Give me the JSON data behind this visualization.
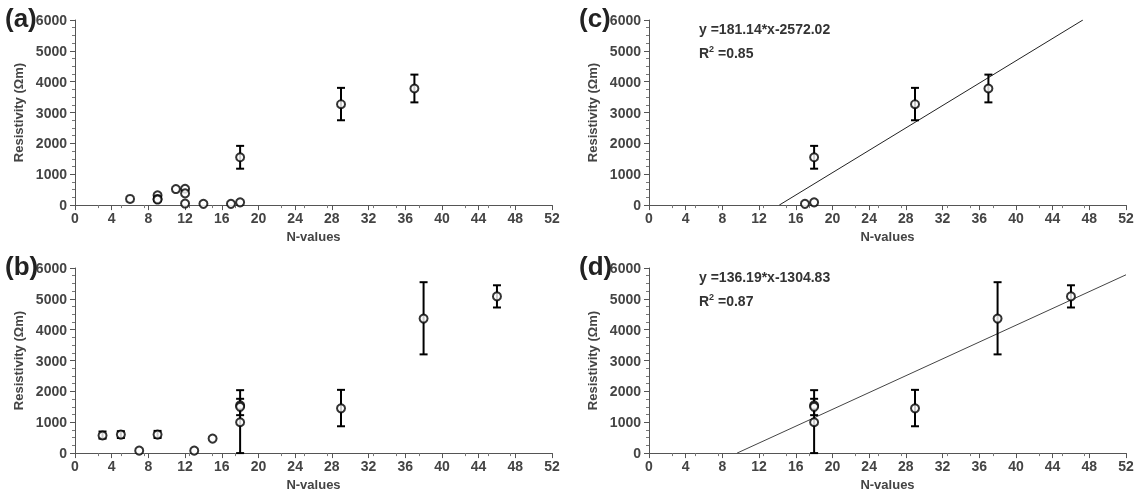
{
  "chart_data": [
    {
      "type": "scatter",
      "title": "(a)",
      "xlabel": "N-values",
      "ylabel": "Resistivity (Ωm)",
      "xlim": [
        0,
        52
      ],
      "ylim": [
        0,
        6000
      ],
      "xticks": [
        0,
        4,
        8,
        12,
        16,
        20,
        24,
        28,
        32,
        36,
        40,
        44,
        48,
        52
      ],
      "yticks": [
        0,
        1000,
        2000,
        3000,
        4000,
        5000,
        6000
      ],
      "grid": false,
      "series": [
        {
          "marker": "circle",
          "color": "#000000",
          "x": [
            6,
            9,
            9,
            9,
            11,
            12,
            12,
            12,
            14,
            17,
            18,
            18,
            29,
            37
          ],
          "values": [
            200,
            320,
            200,
            180,
            520,
            530,
            380,
            50,
            40,
            40,
            90,
            1550,
            3270,
            3780
          ],
          "errors": [
            null,
            null,
            null,
            null,
            null,
            null,
            null,
            null,
            null,
            null,
            null,
            [
              1180,
              1920
            ],
            [
              2750,
              3800
            ],
            [
              3330,
              4230
            ]
          ]
        }
      ]
    },
    {
      "type": "scatter",
      "title": "(c)",
      "xlabel": "N-values",
      "ylabel": "Resistivity (Ωm)",
      "xlim": [
        0,
        52
      ],
      "ylim": [
        0,
        6000
      ],
      "xticks": [
        0,
        4,
        8,
        12,
        16,
        20,
        24,
        28,
        32,
        36,
        40,
        44,
        48,
        52
      ],
      "yticks": [
        0,
        1000,
        2000,
        3000,
        4000,
        5000,
        6000
      ],
      "grid": false,
      "annotations": [
        "y =181.14*x-2572.02",
        "R$^{2}$ =0.85"
      ],
      "series": [
        {
          "marker": "circle",
          "color": "#000000",
          "x": [
            17,
            18,
            18,
            29,
            37
          ],
          "values": [
            40,
            90,
            1550,
            3270,
            3780
          ],
          "errors": [
            null,
            null,
            [
              1180,
              1920
            ],
            [
              2750,
              3800
            ],
            [
              3330,
              4230
            ]
          ]
        },
        {
          "type": "line",
          "marker": "none",
          "color": "#222222",
          "x": [
            14.2,
            47.3
          ],
          "values": [
            0,
            6000
          ]
        }
      ]
    },
    {
      "type": "scatter",
      "title": "(b)",
      "xlabel": "N-values",
      "ylabel": "Resistivity (Ωm)",
      "xlim": [
        0,
        52
      ],
      "ylim": [
        0,
        6000
      ],
      "xticks": [
        0,
        4,
        8,
        12,
        16,
        20,
        24,
        28,
        32,
        36,
        40,
        44,
        48,
        52
      ],
      "yticks": [
        0,
        1000,
        2000,
        3000,
        4000,
        5000,
        6000
      ],
      "grid": false,
      "series": [
        {
          "marker": "circle",
          "color": "#000000",
          "x": [
            3,
            5,
            7,
            9,
            13,
            15,
            18,
            18,
            18,
            29,
            38,
            46
          ],
          "values": [
            570,
            600,
            80,
            600,
            80,
            470,
            1550,
            1500,
            1000,
            1450,
            4360,
            5080
          ],
          "errors": [
            [
              470,
              700
            ],
            [
              490,
              710
            ],
            null,
            [
              490,
              720
            ],
            null,
            null,
            [
              1230,
              1760
            ],
            null,
            [
              0,
              2040
            ],
            [
              870,
              2050
            ],
            [
              3200,
              5540
            ],
            [
              4720,
              5440
            ]
          ]
        }
      ]
    },
    {
      "type": "scatter",
      "title": "(d)",
      "xlabel": "N-values",
      "ylabel": "Resistivity (Ωm)",
      "xlim": [
        0,
        52
      ],
      "ylim": [
        0,
        6000
      ],
      "xticks": [
        0,
        4,
        8,
        12,
        16,
        20,
        24,
        28,
        32,
        36,
        40,
        44,
        48,
        52
      ],
      "yticks": [
        0,
        1000,
        2000,
        3000,
        4000,
        5000,
        6000
      ],
      "grid": false,
      "annotations": [
        "y =136.19*x-1304.83",
        "R$^{2}$ =0.87"
      ],
      "series": [
        {
          "marker": "circle",
          "color": "#000000",
          "x": [
            18,
            18,
            18,
            29,
            38,
            46
          ],
          "values": [
            1550,
            1500,
            1000,
            1450,
            4360,
            5080
          ],
          "errors": [
            [
              1230,
              1760
            ],
            null,
            [
              0,
              2040
            ],
            [
              870,
              2050
            ],
            [
              3200,
              5540
            ],
            [
              4720,
              5440
            ]
          ]
        },
        {
          "type": "line",
          "marker": "none",
          "color": "#444444",
          "x": [
            9.6,
            52
          ],
          "values": [
            0,
            5780
          ]
        }
      ]
    }
  ]
}
